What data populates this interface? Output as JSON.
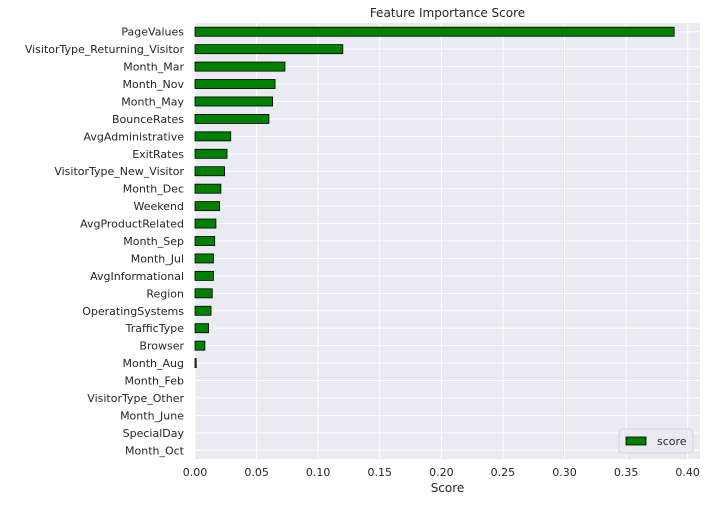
{
  "chart_data": {
    "type": "bar",
    "orientation": "horizontal",
    "title": "Feature Importance Score",
    "xlabel": "Score",
    "ylabel": "",
    "xlim": [
      0,
      0.41
    ],
    "xticks": [
      0.0,
      0.05,
      0.1,
      0.15,
      0.2,
      0.25,
      0.3,
      0.35,
      0.4
    ],
    "xtick_labels": [
      "0.00",
      "0.05",
      "0.10",
      "0.15",
      "0.20",
      "0.25",
      "0.30",
      "0.35",
      "0.40"
    ],
    "grid": true,
    "legend_position": "bottom-right",
    "categories": [
      "PageValues",
      "VisitorType_Returning_Visitor",
      "Month_Mar",
      "Month_Nov",
      "Month_May",
      "BounceRates",
      "AvgAdministrative",
      "ExitRates",
      "VisitorType_New_Visitor",
      "Month_Dec",
      "Weekend",
      "AvgProductRelated",
      "Month_Sep",
      "Month_Jul",
      "AvgInformational",
      "Region",
      "OperatingSystems",
      "TrafficType",
      "Browser",
      "Month_Aug",
      "Month_Feb",
      "VisitorType_Other",
      "Month_June",
      "SpecialDay",
      "Month_Oct"
    ],
    "series": [
      {
        "name": "score",
        "color": "#008000",
        "edge_color": "#000000",
        "values": [
          0.389,
          0.12,
          0.073,
          0.065,
          0.063,
          0.06,
          0.029,
          0.026,
          0.024,
          0.021,
          0.02,
          0.017,
          0.016,
          0.015,
          0.015,
          0.014,
          0.013,
          0.011,
          0.008,
          0.001,
          0.0,
          0.0,
          0.0,
          0.0,
          0.0
        ]
      }
    ],
    "colors": {
      "plot_background": "#eaeaf2",
      "grid": "#ffffff",
      "text": "#262626"
    }
  }
}
